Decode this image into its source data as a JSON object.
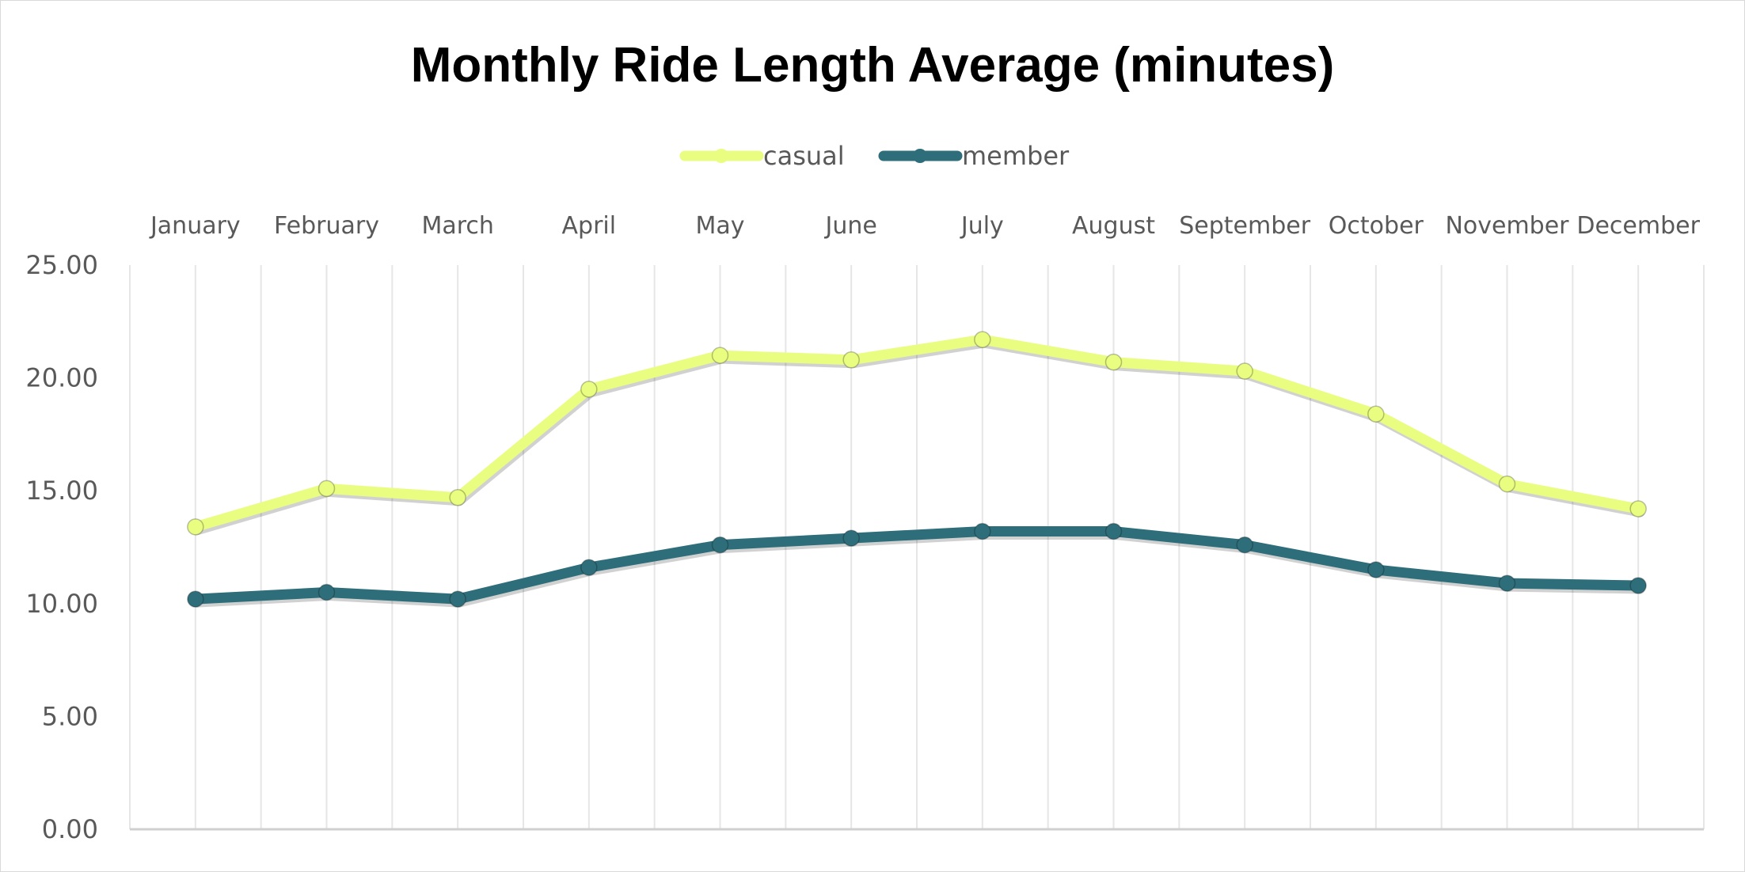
{
  "chart_data": {
    "type": "line",
    "title": "Monthly Ride Length Average (minutes)",
    "xlabel": "",
    "ylabel": "",
    "categories": [
      "January",
      "February",
      "March",
      "April",
      "May",
      "June",
      "July",
      "August",
      "September",
      "October",
      "November",
      "December"
    ],
    "series": [
      {
        "name": "casual",
        "color": "#e9fd80",
        "values": [
          13.4,
          15.1,
          14.7,
          19.5,
          21.0,
          20.8,
          21.7,
          20.7,
          20.3,
          18.4,
          15.3,
          14.2
        ]
      },
      {
        "name": "member",
        "color": "#2e6e7a",
        "values": [
          10.2,
          10.5,
          10.2,
          11.6,
          12.6,
          12.9,
          13.2,
          13.2,
          12.6,
          11.5,
          10.9,
          10.8
        ]
      }
    ],
    "ylim": [
      0,
      25
    ],
    "yticks": [
      "0.00",
      "5.00",
      "10.00",
      "15.00",
      "20.00",
      "25.00"
    ],
    "x_axis_position": "top",
    "grid": "vertical",
    "legend_position": "top-center"
  }
}
